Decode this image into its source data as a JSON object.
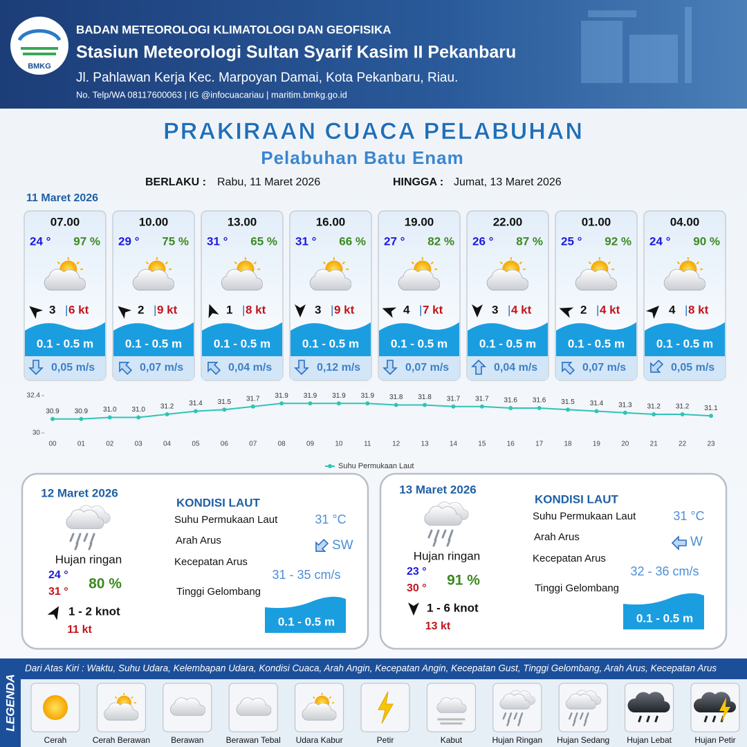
{
  "header": {
    "logo": "BMKG",
    "org": "BADAN METEOROLOGI KLIMATOLOGI DAN GEOFISIKA",
    "station": "Stasiun Meteorologi Sultan Syarif Kasim II Pekanbaru",
    "address": "Jl. Pahlawan Kerja Kec. Marpoyan Damai, Kota Pekanbaru, Riau.",
    "contact": "No. Telp/WA 08117600063 | IG @infocuacariau | maritim.bmkg.go.id"
  },
  "title": "PRAKIRAAN CUACA PELABUHAN",
  "subtitle": "Pelabuhan Batu Enam",
  "validity": {
    "from_label": "BERLAKU :",
    "from": "Rabu, 11 Maret 2026",
    "to_label": "HINGGA :",
    "to": "Jumat, 13 Maret 2026"
  },
  "day1": {
    "date": "11 Maret 2026",
    "slots": [
      {
        "time": "07.00",
        "temp": "24 °",
        "humidity": "97 %",
        "wind": 3,
        "gust": "6 kt",
        "wave": "0.1 - 0.5 m",
        "current": "0,05 m/s"
      },
      {
        "time": "10.00",
        "temp": "29 °",
        "humidity": "75 %",
        "wind": 2,
        "gust": "9 kt",
        "wave": "0.1 - 0.5 m",
        "current": "0,07 m/s"
      },
      {
        "time": "13.00",
        "temp": "31 °",
        "humidity": "65 %",
        "wind": 1,
        "gust": "8 kt",
        "wave": "0.1 - 0.5 m",
        "current": "0,04 m/s"
      },
      {
        "time": "16.00",
        "temp": "31 °",
        "humidity": "66 %",
        "wind": 3,
        "gust": "9 kt",
        "wave": "0.1 - 0.5 m",
        "current": "0,12 m/s"
      },
      {
        "time": "19.00",
        "temp": "27 °",
        "humidity": "82 %",
        "wind": 4,
        "gust": "7 kt",
        "wave": "0.1 - 0.5 m",
        "current": "0,07 m/s"
      },
      {
        "time": "22.00",
        "temp": "26 °",
        "humidity": "87 %",
        "wind": 3,
        "gust": "4 kt",
        "wave": "0.1 - 0.5 m",
        "current": "0,04 m/s"
      },
      {
        "time": "01.00",
        "temp": "25 °",
        "humidity": "92 %",
        "wind": 2,
        "gust": "4 kt",
        "wave": "0.1 - 0.5 m",
        "current": "0,07 m/s"
      },
      {
        "time": "04.00",
        "temp": "24 °",
        "humidity": "90 %",
        "wind": 4,
        "gust": "8 kt",
        "wave": "0.1 - 0.5 m",
        "current": "0,05 m/s"
      }
    ]
  },
  "chart_data": {
    "type": "line",
    "categories": [
      "00",
      "01",
      "02",
      "03",
      "04",
      "05",
      "06",
      "07",
      "08",
      "09",
      "10",
      "11",
      "12",
      "13",
      "14",
      "15",
      "16",
      "17",
      "18",
      "19",
      "20",
      "21",
      "22",
      "23"
    ],
    "series": [
      {
        "name": "Suhu Permukaan Laut",
        "color": "#2ec4b6",
        "values": [
          30.9,
          30.9,
          31.0,
          31.0,
          31.2,
          31.4,
          31.5,
          31.7,
          31.9,
          31.9,
          31.9,
          31.9,
          31.8,
          31.8,
          31.7,
          31.7,
          31.6,
          31.6,
          31.5,
          31.4,
          31.3,
          31.2,
          31.2,
          31.1
        ],
        "value_labels": [
          "30.9",
          "30.9",
          "31.0",
          "31.0",
          "31.2",
          "31.4",
          "31.5",
          "31.7",
          "31.9",
          "31.9",
          "31.9",
          "31.9",
          "31.8",
          "31.8",
          "31.7",
          "31.7",
          "31.6",
          "31.6",
          "31.5",
          "31.4",
          "31.3",
          "31.2",
          "31.2",
          "31.1"
        ]
      }
    ],
    "ylim": [
      30,
      32.4
    ],
    "yticks": [
      30,
      32.4
    ],
    "legend": "bottom"
  },
  "days": [
    {
      "date": "12 Maret 2026",
      "condition": "Hujan ringan",
      "tmin": "24 °",
      "tmax": "31 °",
      "humidity": "80 %",
      "wind": "1 - 2 knot",
      "gust": "11 kt",
      "sea_title": "KONDISI LAUT",
      "sst_label": "Suhu Permukaan Laut",
      "sst": "31 °C",
      "dir_label": "Arah Arus",
      "dir": "SW",
      "speed_label": "Kecepatan Arus",
      "speed": "31  - 35 cm/s",
      "wave_label": "Tinggi Gelombang",
      "wave": "0.1 - 0.5 m"
    },
    {
      "date": "13 Maret 2026",
      "condition": "Hujan ringan",
      "tmin": "23 °",
      "tmax": "30 °",
      "humidity": "91 %",
      "wind": "1 - 6 knot",
      "gust": "13 kt",
      "sea_title": "KONDISI LAUT",
      "sst_label": "Suhu Permukaan Laut",
      "sst": "31 °C",
      "dir_label": "Arah Arus",
      "dir": "W",
      "speed_label": "Kecepatan Arus",
      "speed": "32 - 36 cm/s",
      "wave_label": "Tinggi Gelombang",
      "wave": "0.1 - 0.5 m"
    }
  ],
  "legend": {
    "title": "LEGENDA",
    "description": "Dari Atas Kiri : Waktu, Suhu Udara, Kelembapan Udara, Kondisi Cuaca, Arah Angin, Kecepatan Angin, Kecepatan Gust, Tinggi Gelombang, Arah Arus, Kecepatan Arus",
    "items": [
      "Cerah",
      "Cerah Berawan",
      "Berawan",
      "Berawan Tebal",
      "Udara Kabur",
      "Petir",
      "Kabut",
      "Hujan Ringan",
      "Hujan Sedang",
      "Hujan Lebat",
      "Hujan Petir"
    ]
  }
}
